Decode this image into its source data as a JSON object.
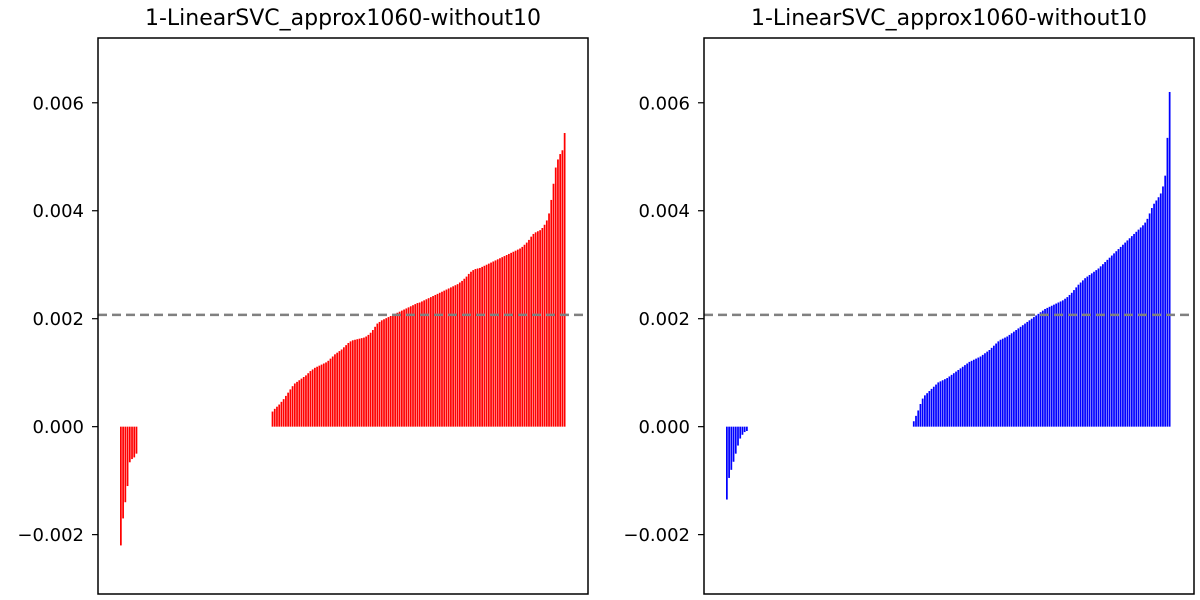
{
  "chart_data": [
    {
      "type": "bar",
      "title": "1-LinearSVC_approx1060-without10",
      "xlabel": "",
      "ylabel": "",
      "ylim": [
        -0.0031,
        0.0072
      ],
      "yticks": [
        -0.002,
        0.0,
        0.002,
        0.004,
        0.006
      ],
      "ytick_labels": [
        "−0.002",
        "0.000",
        "0.002",
        "0.004",
        "0.006"
      ],
      "color": "#ff0000",
      "reference_line": 0.00207,
      "n_positions": 200,
      "negative_values": [
        -0.0022,
        -0.0017,
        -0.0014,
        -0.0011,
        -0.00066,
        -0.0006,
        -0.00057,
        -0.0005
      ],
      "positive_values": [
        0.00028,
        0.00033,
        0.00037,
        0.00041,
        0.00046,
        0.00051,
        0.00057,
        0.00063,
        0.00069,
        0.00075,
        0.0008,
        0.00083,
        0.00086,
        0.00089,
        0.00092,
        0.00095,
        0.00099,
        0.00103,
        0.00106,
        0.00109,
        0.00111,
        0.00113,
        0.00115,
        0.00117,
        0.00119,
        0.00122,
        0.00126,
        0.0013,
        0.00134,
        0.00137,
        0.0014,
        0.00143,
        0.00147,
        0.00151,
        0.00155,
        0.00158,
        0.0016,
        0.00161,
        0.00162,
        0.00163,
        0.00164,
        0.00165,
        0.00167,
        0.0017,
        0.00174,
        0.00179,
        0.00185,
        0.00191,
        0.00194,
        0.00197,
        0.00199,
        0.00201,
        0.00203,
        0.00205,
        0.00207,
        0.00209,
        0.00211,
        0.00213,
        0.00215,
        0.00217,
        0.00219,
        0.00221,
        0.00223,
        0.00225,
        0.00227,
        0.00229,
        0.0023,
        0.00232,
        0.00234,
        0.00236,
        0.00238,
        0.0024,
        0.00242,
        0.00244,
        0.00246,
        0.00248,
        0.0025,
        0.00252,
        0.00254,
        0.00256,
        0.00258,
        0.0026,
        0.00262,
        0.00264,
        0.00267,
        0.0027,
        0.00274,
        0.00278,
        0.00283,
        0.00287,
        0.0029,
        0.00292,
        0.00293,
        0.00294,
        0.00296,
        0.00298,
        0.003,
        0.00302,
        0.00304,
        0.00306,
        0.00308,
        0.0031,
        0.00312,
        0.00314,
        0.00316,
        0.00318,
        0.0032,
        0.00322,
        0.00324,
        0.00326,
        0.00328,
        0.0033,
        0.00333,
        0.00337,
        0.00341,
        0.00346,
        0.00352,
        0.00357,
        0.0036,
        0.00362,
        0.00364,
        0.00368,
        0.00374,
        0.00382,
        0.00395,
        0.0042,
        0.0045,
        0.0048,
        0.00495,
        0.00505,
        0.00512,
        0.00544
      ]
    },
    {
      "type": "bar",
      "title": "1-LinearSVC_approx1060-without10",
      "xlabel": "",
      "ylabel": "",
      "ylim": [
        -0.0031,
        0.0072
      ],
      "yticks": [
        -0.002,
        0.0,
        0.002,
        0.004,
        0.006
      ],
      "ytick_labels": [
        "−0.002",
        "0.000",
        "0.002",
        "0.004",
        "0.006"
      ],
      "color": "#0000ff",
      "reference_line": 0.00207,
      "n_positions": 200,
      "negative_values": [
        -0.00135,
        -0.00095,
        -0.0008,
        -0.00065,
        -0.0005,
        -0.00035,
        -0.00022,
        -0.00015,
        -0.0001,
        -8e-05
      ],
      "positive_values": [
        0.0001,
        0.0002,
        0.0003,
        0.00042,
        0.00052,
        0.00058,
        0.00062,
        0.00066,
        0.0007,
        0.00074,
        0.00078,
        0.00082,
        0.00084,
        0.00086,
        0.00088,
        0.0009,
        0.00093,
        0.00096,
        0.00099,
        0.00102,
        0.00105,
        0.00108,
        0.00111,
        0.00114,
        0.00117,
        0.0012,
        0.00122,
        0.00124,
        0.00126,
        0.00128,
        0.0013,
        0.00133,
        0.00136,
        0.00139,
        0.00142,
        0.00146,
        0.0015,
        0.00154,
        0.00158,
        0.00161,
        0.00163,
        0.00165,
        0.00167,
        0.0017,
        0.00173,
        0.00176,
        0.00179,
        0.00182,
        0.00185,
        0.00188,
        0.00191,
        0.00194,
        0.00197,
        0.002,
        0.00203,
        0.00206,
        0.00209,
        0.00212,
        0.00215,
        0.00218,
        0.0022,
        0.00222,
        0.00224,
        0.00226,
        0.00228,
        0.0023,
        0.00232,
        0.00234,
        0.00237,
        0.0024,
        0.00244,
        0.00248,
        0.00253,
        0.00258,
        0.00263,
        0.00267,
        0.00271,
        0.00275,
        0.00278,
        0.00281,
        0.00284,
        0.00287,
        0.0029,
        0.00293,
        0.00297,
        0.00301,
        0.00305,
        0.00309,
        0.00313,
        0.00317,
        0.00321,
        0.00325,
        0.00329,
        0.00333,
        0.00337,
        0.00341,
        0.00345,
        0.00349,
        0.00353,
        0.00357,
        0.00361,
        0.00365,
        0.00369,
        0.00373,
        0.00378,
        0.00385,
        0.00395,
        0.00405,
        0.00413,
        0.00419,
        0.00425,
        0.00432,
        0.00445,
        0.00465,
        0.00535,
        0.0062
      ]
    }
  ]
}
